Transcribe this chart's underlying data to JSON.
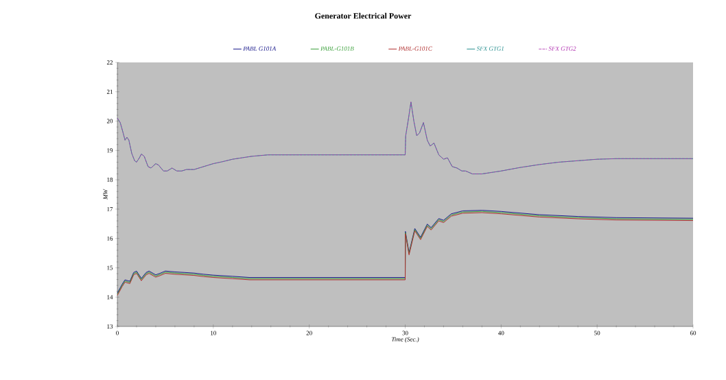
{
  "chart_data": {
    "type": "line",
    "title": "Generator Electrical Power",
    "xlabel": "Time (Sec.)",
    "ylabel": "MW",
    "xlim": [
      0,
      60
    ],
    "xticks": [
      0,
      10,
      20,
      30,
      40,
      50,
      60
    ],
    "ylim": [
      13,
      22
    ],
    "yticks": [
      13,
      14,
      15,
      16,
      17,
      18,
      19,
      20,
      21,
      22
    ],
    "legend": "top",
    "grid": false,
    "line_style": "solid",
    "series": [
      {
        "name": "PABL G101A",
        "color": "#1a1a8c",
        "x": [
          0,
          0.5,
          0.8,
          1.3,
          1.7,
          2,
          2.5,
          3,
          3.3,
          4,
          4.5,
          5,
          6,
          7,
          8,
          9,
          10,
          12,
          13.8,
          30,
          30.02,
          30.4,
          31,
          31.6,
          32.3,
          32.7,
          33.5,
          34,
          34.8,
          36,
          38,
          40,
          44,
          48,
          52,
          60
        ],
        "values": [
          14.14,
          14.44,
          14.59,
          14.54,
          14.84,
          14.89,
          14.64,
          14.84,
          14.89,
          14.76,
          14.82,
          14.89,
          14.86,
          14.84,
          14.82,
          14.78,
          14.75,
          14.71,
          14.67,
          14.67,
          16.24,
          15.52,
          16.34,
          16.04,
          16.49,
          16.37,
          16.68,
          16.62,
          16.84,
          16.94,
          16.96,
          16.92,
          16.81,
          16.75,
          16.71,
          16.69
        ]
      },
      {
        "name": "PABL-G101B",
        "color": "#3aa03a",
        "x": [
          0,
          0.5,
          0.8,
          1.3,
          1.7,
          2,
          2.5,
          3,
          3.3,
          4,
          4.5,
          5,
          6,
          7,
          8,
          9,
          10,
          12,
          13.8,
          30,
          30.02,
          30.4,
          31,
          31.6,
          32.3,
          32.7,
          33.5,
          34,
          34.8,
          36,
          38,
          40,
          44,
          48,
          52,
          60
        ],
        "values": [
          14.1,
          14.4,
          14.55,
          14.5,
          14.8,
          14.85,
          14.6,
          14.8,
          14.85,
          14.72,
          14.78,
          14.85,
          14.82,
          14.8,
          14.78,
          14.74,
          14.71,
          14.67,
          14.63,
          14.63,
          16.2,
          15.48,
          16.3,
          16.0,
          16.45,
          16.33,
          16.64,
          16.58,
          16.8,
          16.9,
          16.92,
          16.88,
          16.77,
          16.71,
          16.67,
          16.65
        ]
      },
      {
        "name": "PABL-G101C",
        "color": "#b03030",
        "x": [
          0,
          0.5,
          0.8,
          1.3,
          1.7,
          2,
          2.5,
          3,
          3.3,
          4,
          4.5,
          5,
          6,
          7,
          8,
          9,
          10,
          12,
          13.8,
          30,
          30.02,
          30.4,
          31,
          31.6,
          32.3,
          32.7,
          33.5,
          34,
          34.8,
          36,
          38,
          40,
          44,
          48,
          52,
          60
        ],
        "values": [
          14.06,
          14.36,
          14.51,
          14.46,
          14.76,
          14.81,
          14.56,
          14.76,
          14.81,
          14.68,
          14.74,
          14.81,
          14.78,
          14.76,
          14.74,
          14.7,
          14.67,
          14.63,
          14.59,
          14.59,
          16.16,
          15.44,
          16.26,
          15.96,
          16.41,
          16.29,
          16.6,
          16.54,
          16.76,
          16.86,
          16.88,
          16.84,
          16.73,
          16.67,
          16.63,
          16.61
        ]
      },
      {
        "name": "SFX GTG1",
        "color": "#2a9090",
        "x": [
          0,
          0.3,
          0.6,
          0.8,
          1.0,
          1.2,
          1.5,
          1.8,
          2.0,
          2.3,
          2.5,
          2.8,
          3.2,
          3.5,
          4.0,
          4.3,
          4.8,
          5.2,
          5.7,
          6.2,
          6.7,
          7.2,
          8,
          9,
          10,
          11,
          12,
          13,
          14,
          15.7,
          30,
          30.05,
          30.3,
          30.6,
          30.9,
          31.2,
          31.5,
          31.9,
          32.3,
          32.6,
          33,
          33.5,
          34,
          34.4,
          34.9,
          35.4,
          35.9,
          36.3,
          37,
          38,
          39,
          40,
          42,
          44,
          46,
          48,
          50,
          52,
          60
        ],
        "values": [
          20.1,
          19.95,
          19.6,
          19.35,
          19.45,
          19.35,
          18.9,
          18.65,
          18.6,
          18.75,
          18.88,
          18.8,
          18.45,
          18.4,
          18.55,
          18.5,
          18.3,
          18.3,
          18.4,
          18.3,
          18.3,
          18.35,
          18.35,
          18.45,
          18.55,
          18.62,
          18.7,
          18.75,
          18.8,
          18.85,
          18.85,
          19.5,
          20.0,
          20.65,
          20.0,
          19.5,
          19.6,
          19.95,
          19.35,
          19.15,
          19.25,
          18.85,
          18.7,
          18.75,
          18.45,
          18.4,
          18.3,
          18.3,
          18.2,
          18.2,
          18.25,
          18.3,
          18.42,
          18.52,
          18.6,
          18.65,
          18.7,
          18.72,
          18.72
        ]
      },
      {
        "name": "SFX GTG2",
        "color": "#b030b0",
        "line_style": "dashed",
        "x": [
          0,
          0.3,
          0.6,
          0.8,
          1.0,
          1.2,
          1.5,
          1.8,
          2.0,
          2.3,
          2.5,
          2.8,
          3.2,
          3.5,
          4.0,
          4.3,
          4.8,
          5.2,
          5.7,
          6.2,
          6.7,
          7.2,
          8,
          9,
          10,
          11,
          12,
          13,
          14,
          15.7,
          30,
          30.05,
          30.3,
          30.6,
          30.9,
          31.2,
          31.5,
          31.9,
          32.3,
          32.6,
          33,
          33.5,
          34,
          34.4,
          34.9,
          35.4,
          35.9,
          36.3,
          37,
          38,
          39,
          40,
          42,
          44,
          46,
          48,
          50,
          52,
          60
        ],
        "values": [
          20.1,
          19.95,
          19.6,
          19.35,
          19.45,
          19.35,
          18.9,
          18.65,
          18.6,
          18.75,
          18.88,
          18.8,
          18.45,
          18.4,
          18.55,
          18.5,
          18.3,
          18.3,
          18.4,
          18.3,
          18.3,
          18.35,
          18.35,
          18.45,
          18.55,
          18.62,
          18.7,
          18.75,
          18.8,
          18.85,
          18.85,
          19.5,
          20.0,
          20.65,
          20.0,
          19.5,
          19.6,
          19.95,
          19.35,
          19.15,
          19.25,
          18.85,
          18.7,
          18.75,
          18.45,
          18.4,
          18.3,
          18.3,
          18.2,
          18.2,
          18.25,
          18.3,
          18.42,
          18.52,
          18.6,
          18.65,
          18.7,
          18.72,
          18.72
        ]
      }
    ]
  }
}
